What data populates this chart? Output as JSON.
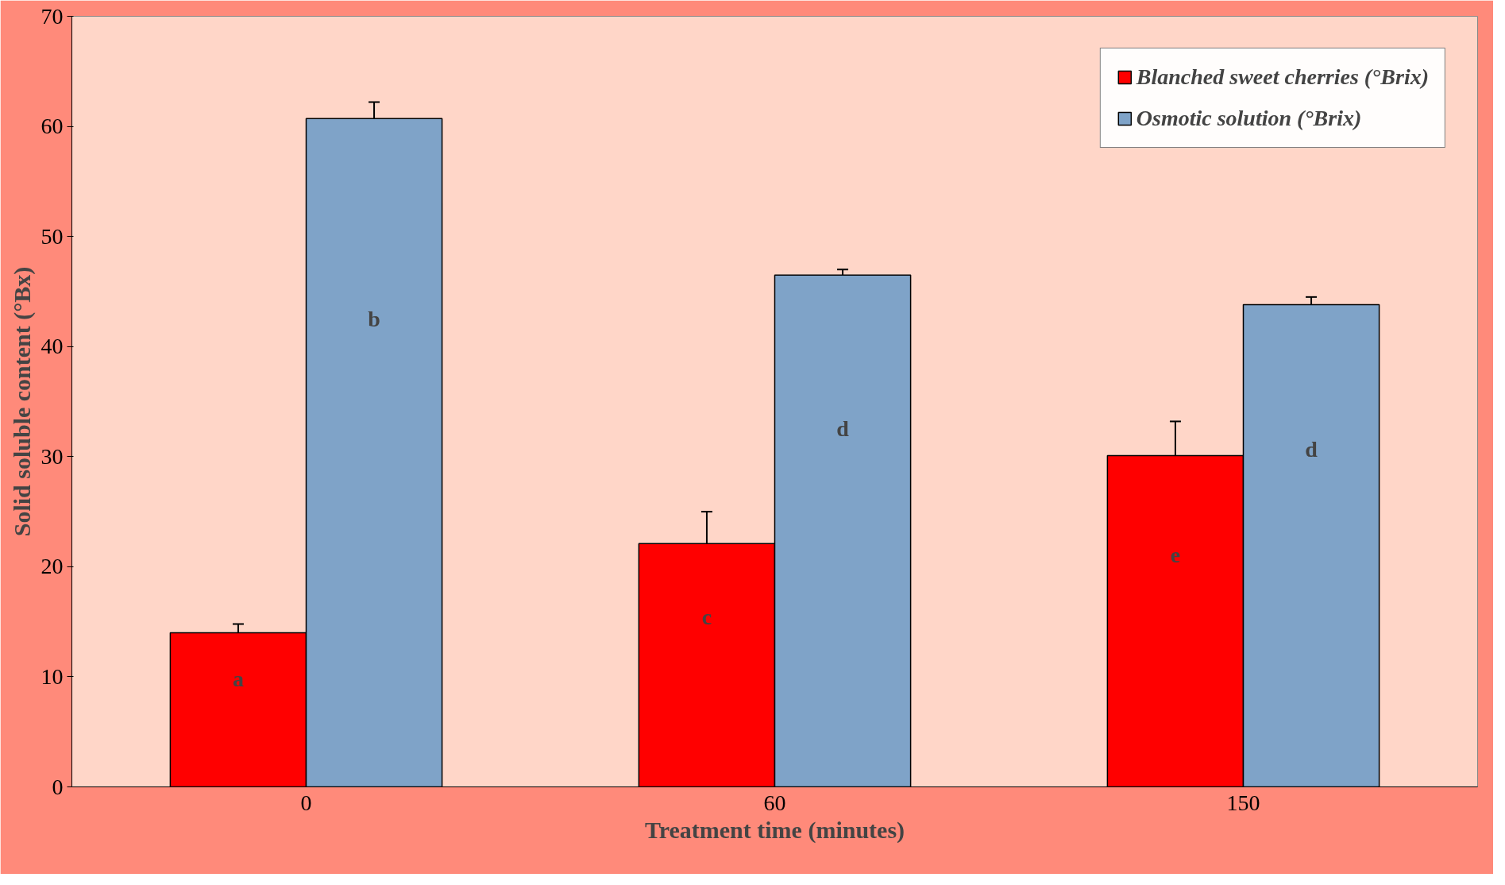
{
  "chart_data": {
    "type": "bar",
    "xlabel": "Treatment time (minutes)",
    "ylabel": "Solid soluble content (°Bx)",
    "categories": [
      "0",
      "60",
      "150"
    ],
    "series": [
      {
        "name": "Blanched sweet cherries (°Brix)",
        "color": "#ff0000",
        "values": [
          14.0,
          22.1,
          30.1
        ],
        "errors": [
          0.8,
          2.9,
          3.1
        ],
        "value_labels": [
          "a",
          "c",
          "e"
        ]
      },
      {
        "name": "Osmotic solution (°Brix)",
        "color": "#7fa3c8",
        "values": [
          60.7,
          46.5,
          43.8
        ],
        "errors": [
          1.5,
          0.5,
          0.7
        ],
        "value_labels": [
          "b",
          "d",
          "d"
        ]
      }
    ],
    "ylim": [
      0,
      70
    ],
    "yticks": [
      0,
      10,
      20,
      30,
      40,
      50,
      60,
      70
    ],
    "grid": false,
    "legend": "top right"
  }
}
